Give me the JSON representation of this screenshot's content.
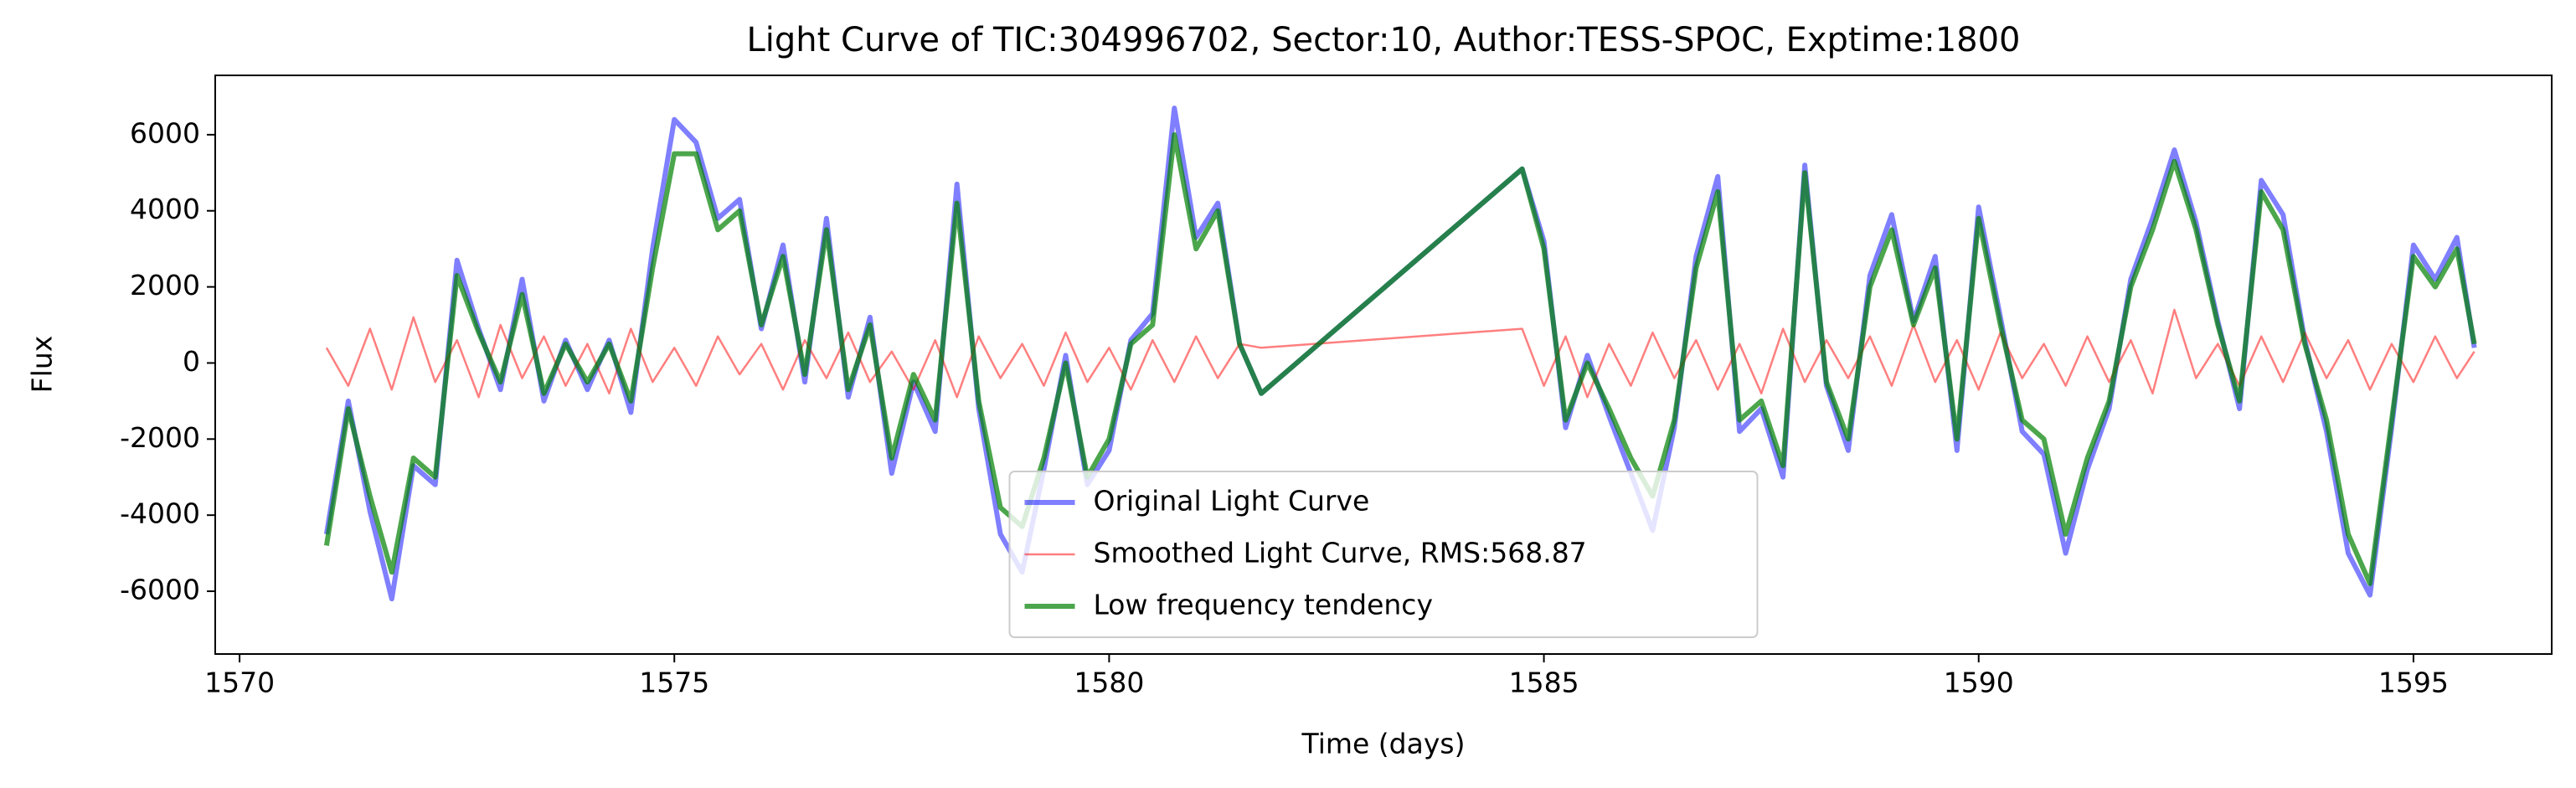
{
  "chart_data": {
    "type": "line",
    "title": "Light Curve of TIC:304996702, Sector:10, Author:TESS-SPOC, Exptime:1800",
    "xlabel": "Time (days)",
    "ylabel": "Flux",
    "x": [
      1571.0,
      1571.25,
      1571.5,
      1571.75,
      1572.0,
      1572.25,
      1572.5,
      1572.75,
      1573.0,
      1573.25,
      1573.5,
      1573.75,
      1574.0,
      1574.25,
      1574.5,
      1574.75,
      1575.0,
      1575.25,
      1575.5,
      1575.75,
      1576.0,
      1576.25,
      1576.5,
      1576.75,
      1577.0,
      1577.25,
      1577.5,
      1577.75,
      1578.0,
      1578.25,
      1578.5,
      1578.75,
      1579.0,
      1579.25,
      1579.5,
      1579.75,
      1580.0,
      1580.25,
      1580.5,
      1580.75,
      1581.0,
      1581.25,
      1581.5,
      1581.75,
      1584.75,
      1585.0,
      1585.25,
      1585.5,
      1585.75,
      1586.0,
      1586.25,
      1586.5,
      1586.75,
      1587.0,
      1587.25,
      1587.5,
      1587.75,
      1588.0,
      1588.25,
      1588.5,
      1588.75,
      1589.0,
      1589.25,
      1589.5,
      1589.75,
      1590.0,
      1590.25,
      1590.5,
      1590.75,
      1591.0,
      1591.25,
      1591.5,
      1591.75,
      1592.0,
      1592.25,
      1592.5,
      1592.75,
      1593.0,
      1593.25,
      1593.5,
      1593.75,
      1594.0,
      1594.25,
      1594.5,
      1594.75,
      1595.0,
      1595.25,
      1595.5,
      1595.7
    ],
    "series": [
      {
        "name": "Original Light Curve",
        "color": "#0000ff",
        "alpha": 0.5,
        "values": [
          -4500,
          -1000,
          -3900,
          -6200,
          -2700,
          -3200,
          2700,
          900,
          -700,
          2200,
          -1000,
          600,
          -700,
          600,
          -1300,
          3000,
          6400,
          5800,
          3800,
          4300,
          900,
          3100,
          -500,
          3800,
          -900,
          1200,
          -2900,
          -500,
          -1800,
          4700,
          -1200,
          -4500,
          -5500,
          -2800,
          200,
          -3200,
          -2300,
          600,
          1300,
          6700,
          3300,
          4200,
          500,
          -800,
          5100,
          3200,
          -1700,
          200,
          -1400,
          -2900,
          -4400,
          -1700,
          2800,
          4900,
          -1800,
          -1200,
          -3000,
          5200,
          -600,
          -2300,
          2300,
          3900,
          1100,
          2800,
          -2300,
          4100,
          1200,
          -1800,
          -2400,
          -5000,
          -2800,
          -1200,
          2200,
          3800,
          5600,
          3700,
          1100,
          -1200,
          4800,
          3900,
          600,
          -1800,
          -5000,
          -6100,
          -1700,
          3100,
          2200,
          3300,
          400
        ]
      },
      {
        "name": "Smoothed Light Curve, RMS:568.87",
        "color": "#ff0000",
        "alpha": 0.5,
        "values": [
          400,
          -600,
          900,
          -700,
          1200,
          -500,
          600,
          -900,
          1000,
          -400,
          700,
          -600,
          500,
          -800,
          900,
          -500,
          400,
          -600,
          700,
          -300,
          500,
          -700,
          600,
          -400,
          800,
          -500,
          300,
          -700,
          600,
          -900,
          700,
          -400,
          500,
          -600,
          800,
          -500,
          400,
          -700,
          600,
          -500,
          700,
          -400,
          500,
          400,
          900,
          -600,
          700,
          -900,
          500,
          -600,
          800,
          -400,
          600,
          -700,
          500,
          -800,
          900,
          -500,
          600,
          -400,
          700,
          -600,
          1000,
          -500,
          600,
          -700,
          800,
          -400,
          500,
          -600,
          700,
          -500,
          600,
          -800,
          1400,
          -400,
          500,
          -600,
          700,
          -500,
          800,
          -400,
          600,
          -700,
          500,
          -500,
          700,
          -400,
          300
        ]
      },
      {
        "name": "Low frequency tendency",
        "color": "#008000",
        "alpha": 0.7,
        "values": [
          -4800,
          -1200,
          -3500,
          -5500,
          -2500,
          -3000,
          2300,
          800,
          -500,
          1800,
          -800,
          500,
          -500,
          500,
          -1000,
          2500,
          5500,
          5500,
          3500,
          4000,
          1000,
          2800,
          -300,
          3500,
          -700,
          1000,
          -2500,
          -300,
          -1500,
          4200,
          -1000,
          -3800,
          -4300,
          -2500,
          0,
          -3000,
          -2000,
          500,
          1000,
          6000,
          3000,
          4000,
          500,
          -800,
          5100,
          3000,
          -1500,
          0,
          -1200,
          -2500,
          -3500,
          -1500,
          2500,
          4500,
          -1500,
          -1000,
          -2700,
          5000,
          -500,
          -2000,
          2000,
          3500,
          1000,
          2500,
          -2000,
          3800,
          1000,
          -1500,
          -2000,
          -4500,
          -2500,
          -1000,
          2000,
          3500,
          5300,
          3500,
          1000,
          -1000,
          4500,
          3500,
          500,
          -1500,
          -4500,
          -5800,
          -1500,
          2800,
          2000,
          3000,
          500
        ]
      }
    ],
    "xlim": [
      1569.72,
      1596.59
    ],
    "ylim": [
      -7650,
      7560
    ],
    "xticks": [
      1570,
      1575,
      1580,
      1585,
      1590,
      1595
    ],
    "yticks": [
      -6000,
      -4000,
      -2000,
      0,
      2000,
      4000,
      6000
    ],
    "legend": "lower center"
  }
}
